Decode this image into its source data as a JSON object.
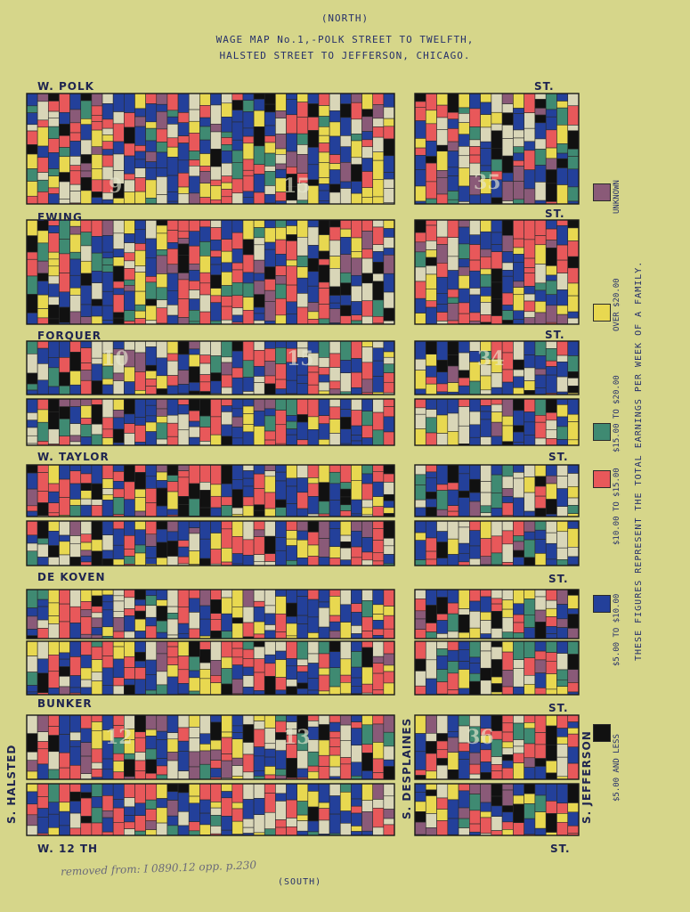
{
  "header": {
    "north": "(NORTH)",
    "title_line1": "WAGE MAP No.1,-POLK STREET TO TWELFTH,",
    "title_line2": "HALSTED STREET TO JEFFERSON, CHICAGO.",
    "south": "(SOUTH)"
  },
  "streets": {
    "polk": "W. POLK",
    "polk_st": "ST.",
    "ewing": "EWING",
    "ewing_st": "ST.",
    "forquer": "FORQUER",
    "forquer_st": "ST.",
    "taylor": "W. TAYLOR",
    "taylor_st": "ST.",
    "dekoven": "DE KOVEN",
    "dekoven_st": "ST.",
    "bunker": "BUNKER",
    "bunker_st": "ST.",
    "twelfth": "W. 12 TH",
    "twelfth_st": "ST.",
    "halsted": "S. HALSTED",
    "desplaines": "S. DESPLAINES",
    "jefferson": "S. JEFFERSON"
  },
  "block_numbers": [
    "9",
    "15",
    "35",
    "10",
    "15",
    "34",
    "12",
    "13",
    "36"
  ],
  "legend": {
    "title": "THESE FIGURES REPRESENT THE TOTAL EARNINGS PER WEEK OF A FAMILY.",
    "items": [
      {
        "label": "UNKNOWN",
        "color": "#8a5a78"
      },
      {
        "label": "OVER $20.00",
        "color": "#e8d850"
      },
      {
        "label": "$15.00 TO $20.00",
        "color": "#3f8a72"
      },
      {
        "label": "$10.00 TO $15.00",
        "color": "#e8585a"
      },
      {
        "label": "$5.00 TO $10.00",
        "color": "#23409a"
      },
      {
        "label": "$5.00 AND LESS",
        "color": "#111111"
      }
    ]
  },
  "annotation": "removed from: I 0890.12 opp. p.230"
}
